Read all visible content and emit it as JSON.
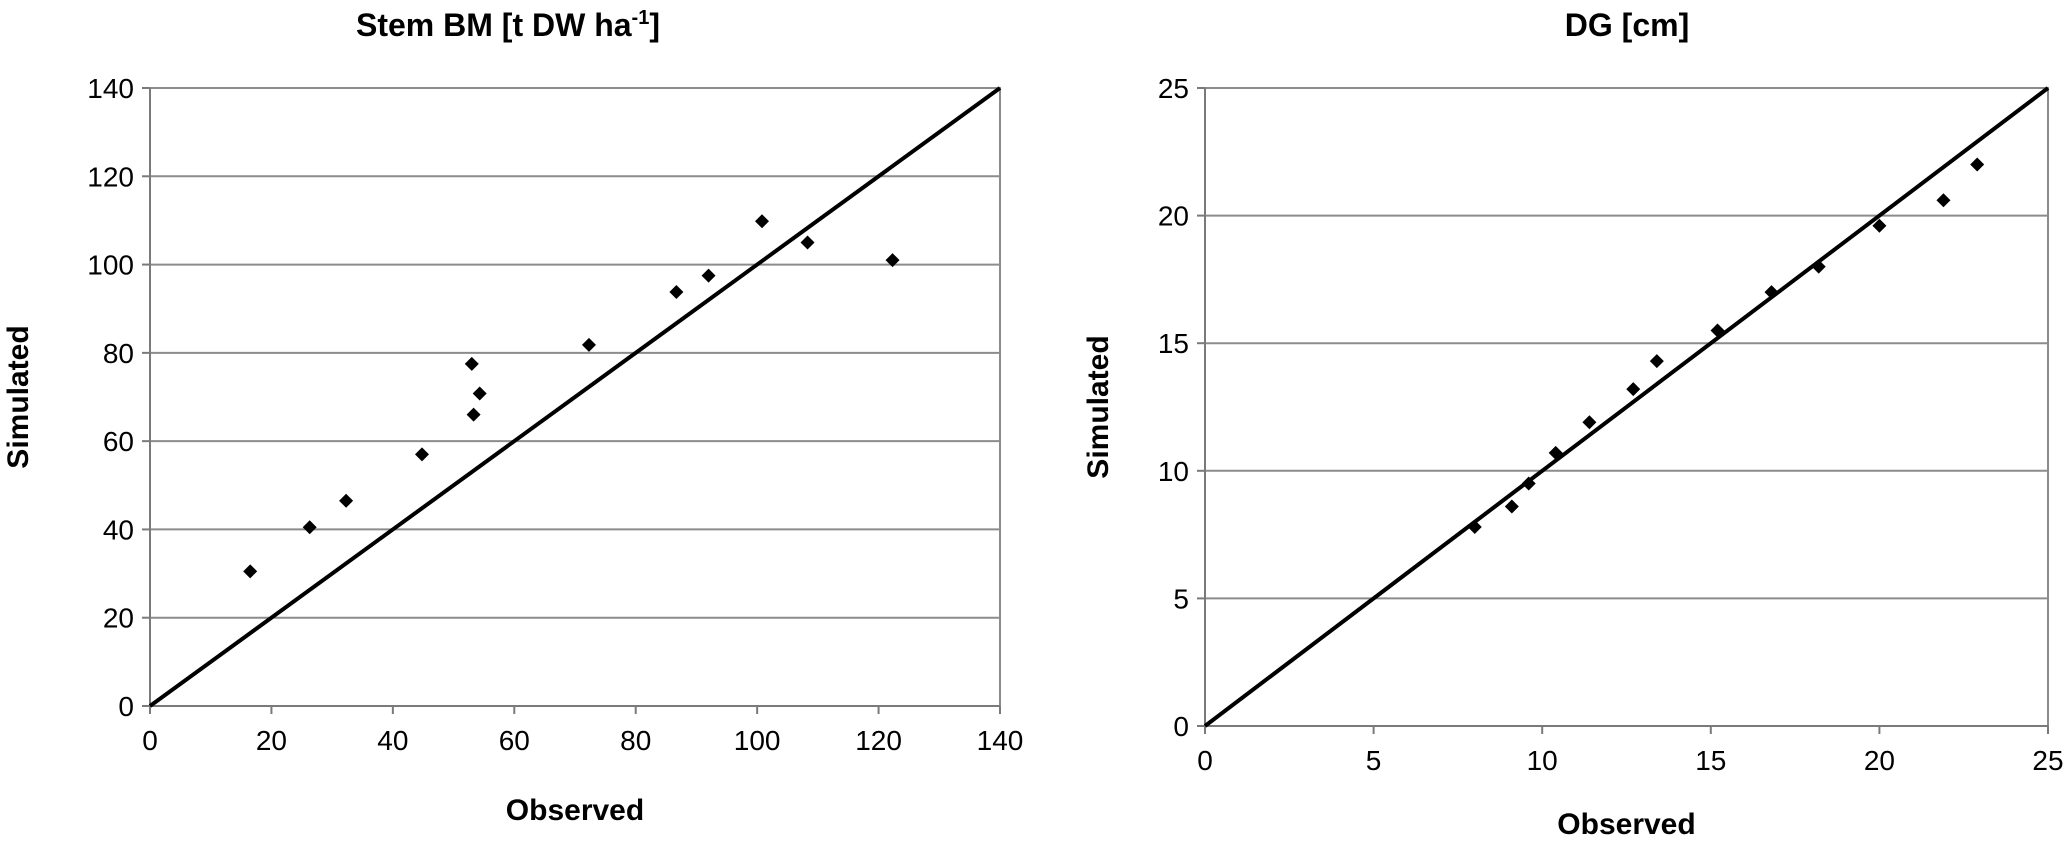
{
  "chart_data": [
    {
      "type": "scatter",
      "title": "Stem BM [t DW ha",
      "title_superscript": "-1",
      "title_suffix": "]",
      "xlabel": "Observed",
      "ylabel": "Simulated",
      "xlim": [
        0,
        140
      ],
      "ylim": [
        0,
        140
      ],
      "xticks": [
        "0",
        "20",
        "40",
        "60",
        "80",
        "100",
        "120",
        "140"
      ],
      "yticks": [
        "0",
        "20",
        "40",
        "60",
        "80",
        "100",
        "120",
        "140"
      ],
      "grid": "horizontal",
      "legend": "none",
      "reference_line": "1:1",
      "marker": "diamond",
      "marker_color": "#000000",
      "series": [
        {
          "x": [
            16.5,
            26.3,
            32.3,
            44.8,
            53.0,
            53.3,
            54.3,
            72.3,
            86.7,
            92.0,
            100.8,
            108.3,
            122.3
          ],
          "y": [
            30.5,
            40.5,
            46.5,
            57.0,
            77.5,
            66.0,
            70.8,
            81.8,
            93.8,
            97.5,
            109.8,
            105.0,
            101.0
          ]
        }
      ]
    },
    {
      "type": "scatter",
      "title": "DG [cm]",
      "xlabel": "Observed",
      "ylabel": "Simulated",
      "xlim": [
        0,
        25
      ],
      "ylim": [
        0,
        25
      ],
      "xticks": [
        "0",
        "5",
        "10",
        "15",
        "20",
        "25"
      ],
      "yticks": [
        "0",
        "5",
        "10",
        "15",
        "20",
        "25"
      ],
      "grid": "horizontal",
      "legend": "none",
      "reference_line": "1:1",
      "marker": "diamond",
      "marker_color": "#000000",
      "series": [
        {
          "x": [
            8.0,
            9.1,
            9.6,
            10.4,
            11.4,
            12.7,
            13.4,
            15.2,
            16.8,
            18.2,
            20.0,
            21.9,
            22.9
          ],
          "y": [
            7.8,
            8.6,
            9.5,
            10.7,
            11.9,
            13.2,
            14.3,
            15.5,
            17.0,
            18.0,
            19.6,
            20.6,
            22.0
          ]
        }
      ]
    }
  ]
}
